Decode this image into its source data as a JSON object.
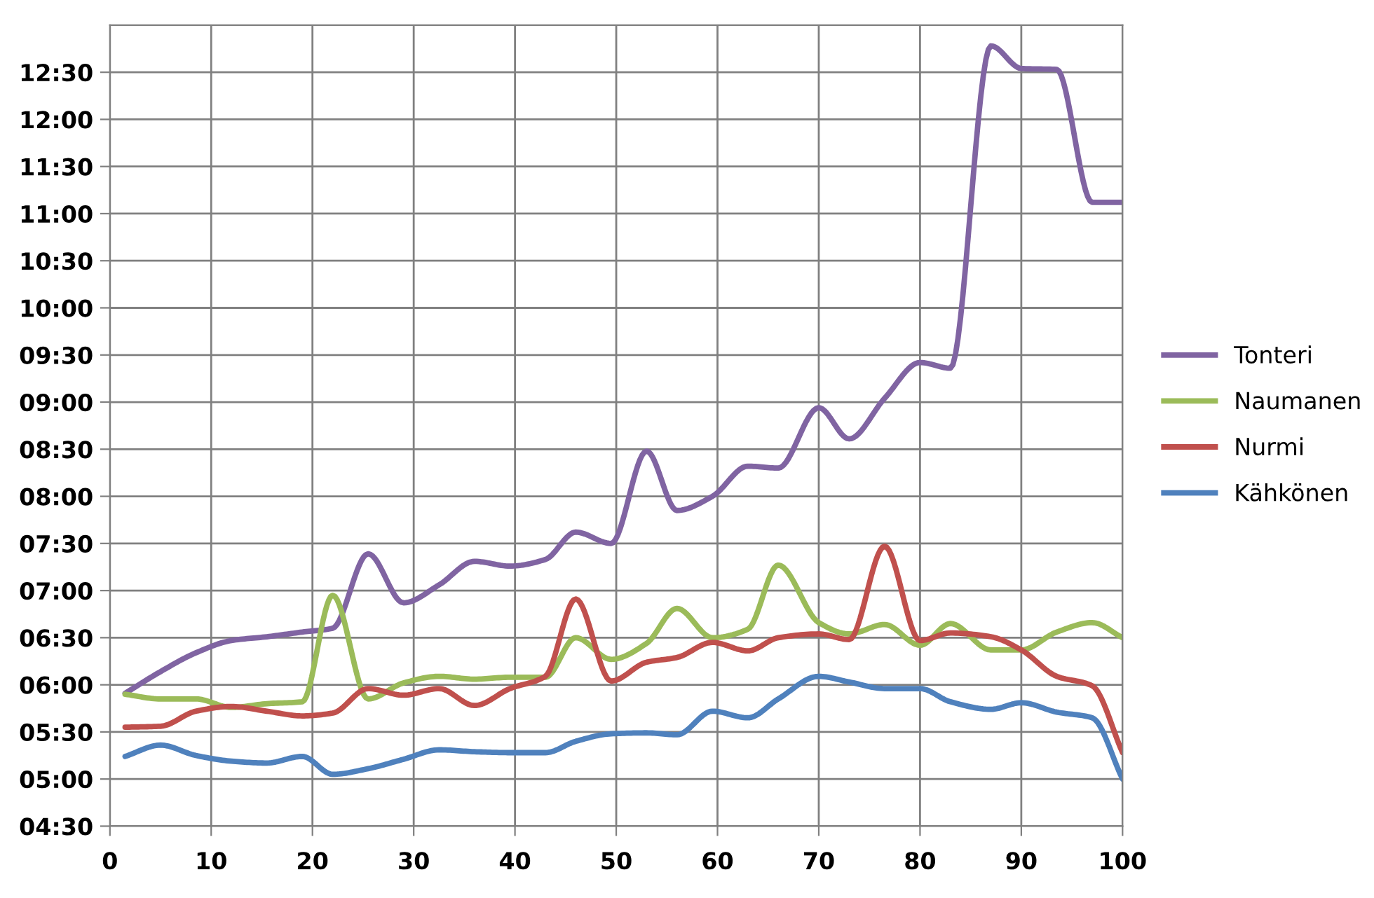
{
  "chart_data": {
    "type": "line",
    "x": [
      1.5,
      5,
      8.5,
      12,
      15.5,
      19,
      22,
      25.5,
      29,
      32.5,
      36,
      39.5,
      43,
      46,
      49.5,
      53,
      56,
      59.5,
      63,
      66,
      70,
      73,
      76.5,
      80,
      83,
      87,
      90,
      93.5,
      97,
      100
    ],
    "series": [
      {
        "name": "Tonteri",
        "color": "#8064a2",
        "values": [
          5.91,
          6.14,
          6.34,
          6.47,
          6.51,
          6.56,
          6.6,
          7.39,
          6.87,
          7.06,
          7.31,
          7.26,
          7.33,
          7.62,
          7.5,
          8.48,
          7.85,
          8.0,
          8.32,
          8.3,
          8.94,
          8.61,
          9.04,
          9.42,
          9.36,
          12.78,
          12.54,
          12.53,
          11.12,
          11.12
        ]
      },
      {
        "name": "Naumanen",
        "color": "#9bbb59",
        "values": [
          5.9,
          5.85,
          5.85,
          5.76,
          5.8,
          5.82,
          6.95,
          5.85,
          6.02,
          6.09,
          6.06,
          6.08,
          6.08,
          6.5,
          6.27,
          6.44,
          6.81,
          6.5,
          6.59,
          7.27,
          6.66,
          6.54,
          6.64,
          6.42,
          6.65,
          6.37,
          6.37,
          6.56,
          6.66,
          6.5
        ]
      },
      {
        "name": "Nurmi",
        "color": "#c0504d",
        "values": [
          5.55,
          5.56,
          5.72,
          5.77,
          5.72,
          5.67,
          5.7,
          5.96,
          5.89,
          5.96,
          5.78,
          5.96,
          6.09,
          6.91,
          6.04,
          6.24,
          6.29,
          6.45,
          6.36,
          6.5,
          6.54,
          6.48,
          7.47,
          6.47,
          6.55,
          6.51,
          6.37,
          6.09,
          5.99,
          5.28
        ]
      },
      {
        "name": "Kähkönen",
        "color": "#4f81bd",
        "values": [
          5.24,
          5.36,
          5.25,
          5.19,
          5.17,
          5.24,
          5.05,
          5.11,
          5.21,
          5.31,
          5.29,
          5.28,
          5.28,
          5.4,
          5.48,
          5.49,
          5.47,
          5.72,
          5.65,
          5.85,
          6.09,
          6.03,
          5.96,
          5.96,
          5.82,
          5.74,
          5.81,
          5.71,
          5.65,
          5.0
        ]
      }
    ],
    "xlim": [
      0,
      100
    ],
    "xticks": [
      0,
      10,
      20,
      30,
      40,
      50,
      60,
      70,
      80,
      90,
      100
    ],
    "ylim": [
      4.5,
      13
    ],
    "yticks": [
      {
        "value": 4.5,
        "label": "04:30"
      },
      {
        "value": 5,
        "label": "05:00"
      },
      {
        "value": 5.5,
        "label": "05:30"
      },
      {
        "value": 6,
        "label": "06:00"
      },
      {
        "value": 6.5,
        "label": "06:30"
      },
      {
        "value": 7,
        "label": "07:00"
      },
      {
        "value": 7.5,
        "label": "07:30"
      },
      {
        "value": 8,
        "label": "08:00"
      },
      {
        "value": 8.5,
        "label": "08:30"
      },
      {
        "value": 9,
        "label": "09:00"
      },
      {
        "value": 9.5,
        "label": "09:30"
      },
      {
        "value": 10,
        "label": "10:00"
      },
      {
        "value": 10.5,
        "label": "10:30"
      },
      {
        "value": 11,
        "label": "11:00"
      },
      {
        "value": 11.5,
        "label": "11:30"
      },
      {
        "value": 12,
        "label": "12:00"
      },
      {
        "value": 12.5,
        "label": "12:30"
      }
    ],
    "grid": true,
    "legend": "right",
    "marker": "none",
    "line_style": "solid"
  }
}
